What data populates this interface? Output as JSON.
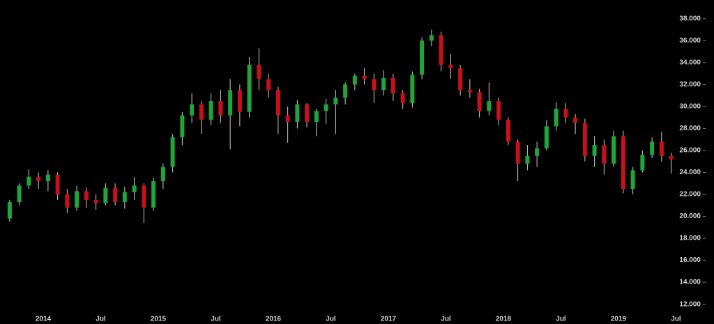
{
  "chart_data": {
    "type": "candlestick",
    "x": [
      "2013-09",
      "2013-10",
      "2013-11",
      "2013-12",
      "2014-01",
      "2014-02",
      "2014-03",
      "2014-04",
      "2014-05",
      "2014-06",
      "2014-07",
      "2014-08",
      "2014-09",
      "2014-10",
      "2014-11",
      "2014-12",
      "2015-01",
      "2015-02",
      "2015-03",
      "2015-04",
      "2015-05",
      "2015-06",
      "2015-07",
      "2015-08",
      "2015-09",
      "2015-10",
      "2015-11",
      "2015-12",
      "2016-01",
      "2016-02",
      "2016-03",
      "2016-04",
      "2016-05",
      "2016-06",
      "2016-07",
      "2016-08",
      "2016-09",
      "2016-10",
      "2016-11",
      "2016-12",
      "2017-01",
      "2017-02",
      "2017-03",
      "2017-04",
      "2017-05",
      "2017-06",
      "2017-07",
      "2017-08",
      "2017-09",
      "2017-10",
      "2017-11",
      "2017-12",
      "2018-01",
      "2018-02",
      "2018-03",
      "2018-04",
      "2018-05",
      "2018-06",
      "2018-07",
      "2018-08",
      "2018-09",
      "2018-10",
      "2018-11",
      "2018-12",
      "2019-01",
      "2019-02",
      "2019-03",
      "2019-04",
      "2019-05",
      "2019-06"
    ],
    "open": [
      19.8,
      21.3,
      22.8,
      23.6,
      23.2,
      23.8,
      22.0,
      20.8,
      22.3,
      21.5,
      21.2,
      22.6,
      21.3,
      22.2,
      22.8,
      20.8,
      23.2,
      24.5,
      27.2,
      29.2,
      30.2,
      28.8,
      30.5,
      29.2,
      31.5,
      29.5,
      33.8,
      32.5,
      31.5,
      29.2,
      28.6,
      30.2,
      28.6,
      29.6,
      30.2,
      30.8,
      32,
      32.8,
      32.5,
      31.5,
      32.6,
      31.2,
      30.3,
      32.9,
      36,
      36.5,
      33.8,
      33.5,
      31.5,
      31.3,
      29.6,
      30.5,
      28.8,
      26.8,
      24.8,
      25.5,
      26.2,
      28.2,
      29.8,
      29,
      28.5,
      25.5,
      26.5,
      24.8,
      27.3,
      22.5,
      24.2,
      25.6,
      26.8,
      25.5
    ],
    "high": [
      21.5,
      23,
      24.3,
      24,
      24.2,
      24,
      22.5,
      22.8,
      22.6,
      22,
      23,
      23,
      22.7,
      23.6,
      23,
      23.5,
      24.8,
      27.5,
      29.5,
      31.2,
      30.5,
      31.2,
      31.5,
      32.5,
      32,
      34.5,
      35.3,
      33,
      31.8,
      30,
      30.6,
      30.3,
      29.8,
      30.7,
      31.5,
      32.2,
      33,
      33.5,
      33,
      33.3,
      33,
      31.5,
      33.2,
      36.3,
      37,
      36.8,
      34.8,
      33.8,
      32.5,
      31.6,
      32.2,
      30.8,
      29,
      27,
      26.5,
      26.8,
      28.8,
      30.4,
      30.3,
      29.3,
      28.9,
      27.3,
      27,
      27.8,
      27.8,
      24.5,
      26,
      27.2,
      27.7,
      25.8
    ],
    "low": [
      19.5,
      21,
      22.5,
      22.5,
      22.3,
      21.5,
      20.3,
      20.5,
      20.8,
      20.6,
      21,
      21,
      20.7,
      21.5,
      19.4,
      20.5,
      22.5,
      24,
      26.5,
      28.5,
      27.5,
      28.3,
      28.5,
      26.1,
      28.2,
      29,
      31.5,
      30.8,
      27.5,
      26.7,
      28,
      28.1,
      27.3,
      28.4,
      27.5,
      30.2,
      31.5,
      32,
      30.3,
      31,
      30.5,
      29.8,
      29.9,
      32.5,
      35.5,
      33.2,
      32.5,
      31,
      30.8,
      29,
      29.2,
      28.3,
      26.5,
      23.2,
      24.2,
      24.5,
      26,
      27.8,
      28.5,
      27.5,
      25,
      24.5,
      23.8,
      24.5,
      22.1,
      22,
      24,
      25.3,
      25,
      23.9
    ],
    "close": [
      21.3,
      22.8,
      23.6,
      23.2,
      23.8,
      22.0,
      20.8,
      22.3,
      21.5,
      21.2,
      22.6,
      21.3,
      22.2,
      22.8,
      20.8,
      23.2,
      24.5,
      27.2,
      29.2,
      30.2,
      28.8,
      30.5,
      29.2,
      31.5,
      29.5,
      33.8,
      32.5,
      31.5,
      29.2,
      28.6,
      30.2,
      28.6,
      29.6,
      30.2,
      30.8,
      32,
      32.8,
      32.5,
      31.5,
      32.6,
      31.2,
      30.3,
      32.9,
      36,
      36.5,
      33.8,
      33.5,
      31.5,
      31.3,
      29.6,
      30.5,
      28.8,
      26.8,
      24.8,
      25.5,
      26.2,
      28.2,
      29.8,
      29,
      28.5,
      25.5,
      26.5,
      24.8,
      27.3,
      22.5,
      24.2,
      25.6,
      26.8,
      25.5,
      25.2
    ],
    "up_color": "#1fa53a",
    "down_color": "#c8101a",
    "ylim": [
      10.2,
      39.7
    ],
    "yticks": [
      {
        "value": 12,
        "label": "12.000"
      },
      {
        "value": 14,
        "label": "14.000"
      },
      {
        "value": 16,
        "label": "16.000"
      },
      {
        "value": 18,
        "label": "18.000"
      },
      {
        "value": 20,
        "label": "20.000"
      },
      {
        "value": 22,
        "label": "22.000"
      },
      {
        "value": 24,
        "label": "24.000"
      },
      {
        "value": 26,
        "label": "26.000"
      },
      {
        "value": 28,
        "label": "28.000"
      },
      {
        "value": 30,
        "label": "30.000"
      },
      {
        "value": 32,
        "label": "32.000"
      },
      {
        "value": 34,
        "label": "34.000"
      },
      {
        "value": 36,
        "label": "36.000"
      },
      {
        "value": 38,
        "label": "38.000"
      }
    ],
    "xticks": [
      {
        "value": "2014-01",
        "label": "2014"
      },
      {
        "value": "2014-07",
        "label": "Jul"
      },
      {
        "value": "2015-01",
        "label": "2015"
      },
      {
        "value": "2015-07",
        "label": "Jul"
      },
      {
        "value": "2016-01",
        "label": "2016"
      },
      {
        "value": "2016-07",
        "label": "Jul"
      },
      {
        "value": "2017-01",
        "label": "2017"
      },
      {
        "value": "2017-07",
        "label": "Jul"
      },
      {
        "value": "2018-01",
        "label": "2018"
      },
      {
        "value": "2018-07",
        "label": "Jul"
      },
      {
        "value": "2019-01",
        "label": "2019"
      },
      {
        "value": "2019-07",
        "label": "Jul"
      }
    ]
  }
}
